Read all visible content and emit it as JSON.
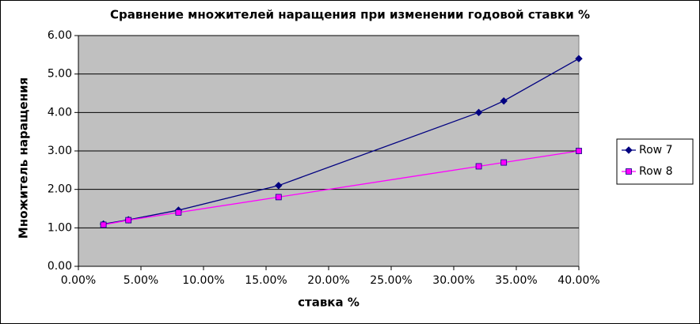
{
  "chart_data": {
    "type": "line",
    "title": "Сравнение множителей наращения при изменении годовой ставки %",
    "x_label": "ставка %",
    "y_label": "Множитель наращения",
    "x": [
      2,
      4,
      8,
      16,
      32,
      34,
      40
    ],
    "series": [
      {
        "name": "Row 7",
        "color": "#000080",
        "marker": "diamond",
        "values": [
          1.1,
          1.21,
          1.46,
          2.1,
          4.0,
          4.3,
          5.4
        ]
      },
      {
        "name": "Row 8",
        "color": "#ff00ff",
        "marker": "square",
        "values": [
          1.08,
          1.2,
          1.4,
          1.8,
          2.6,
          2.7,
          3.0
        ]
      }
    ],
    "xlim": [
      0,
      40
    ],
    "xticks": [
      {
        "value": 0,
        "label": "0.00%"
      },
      {
        "value": 5,
        "label": "5.00%"
      },
      {
        "value": 10,
        "label": "10.00%"
      },
      {
        "value": 15,
        "label": "15.00%"
      },
      {
        "value": 20,
        "label": "20.00%"
      },
      {
        "value": 25,
        "label": "25.00%"
      },
      {
        "value": 30,
        "label": "30.00%"
      },
      {
        "value": 35,
        "label": "35.00%"
      },
      {
        "value": 40,
        "label": "40.00%"
      }
    ],
    "ylim": [
      0,
      6
    ],
    "yticks": [
      {
        "value": 0,
        "label": "0.00"
      },
      {
        "value": 1,
        "label": "1.00"
      },
      {
        "value": 2,
        "label": "2.00"
      },
      {
        "value": 3,
        "label": "3.00"
      },
      {
        "value": 4,
        "label": "4.00"
      },
      {
        "value": 5,
        "label": "5.00"
      },
      {
        "value": 6,
        "label": "6.00"
      }
    ],
    "grid": true,
    "legend": "right"
  }
}
